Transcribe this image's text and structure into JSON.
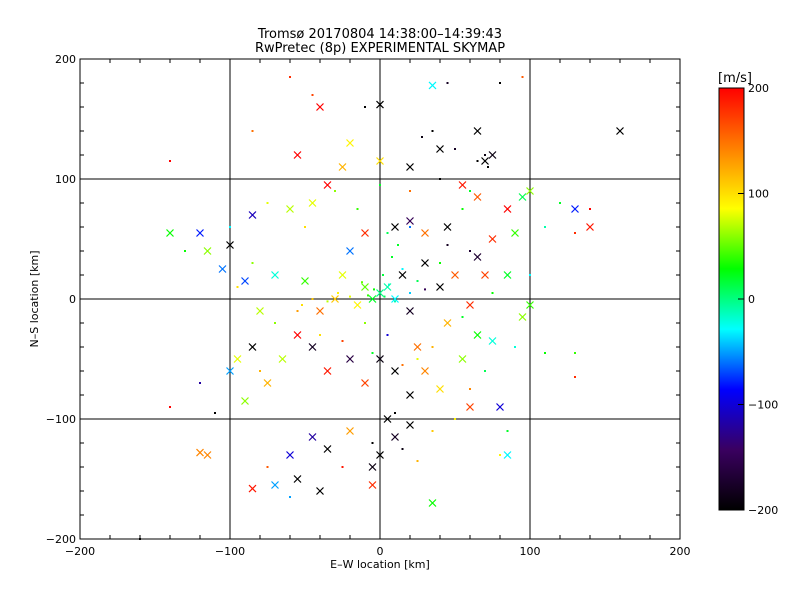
{
  "chart_data": {
    "type": "scatter",
    "title": "Tromsø 20170804 14:38:00–14:39:43",
    "subtitle": "RwPretec (8p) EXPERIMENTAL SKYMAP",
    "xlabel": "E–W location [km]",
    "ylabel": "N–S location [km]",
    "xlim": [
      -200,
      200
    ],
    "ylim": [
      -200,
      200
    ],
    "xticks": [
      -200,
      -100,
      0,
      100,
      200
    ],
    "yticks": [
      -200,
      -100,
      0,
      100,
      200
    ],
    "grid": true,
    "grid_lines": [
      -100,
      0,
      100
    ],
    "colorbar": {
      "label": "[m/s]",
      "ticks": [
        200,
        100,
        0,
        -100,
        -200
      ],
      "range": [
        -200,
        200
      ],
      "colormap": [
        "#000000",
        "#3a0060",
        "#0000ff",
        "#00ffff",
        "#00ff00",
        "#ffff00",
        "#ff8000",
        "#ff0000"
      ]
    },
    "marker_types": [
      "x",
      "dot"
    ],
    "points": [
      {
        "x": 0,
        "y": 5,
        "v": 0,
        "m": "dot"
      },
      {
        "x": 3,
        "y": 2,
        "v": 10,
        "m": "dot"
      },
      {
        "x": -4,
        "y": 8,
        "v": 30,
        "m": "dot"
      },
      {
        "x": 6,
        "y": 12,
        "v": -20,
        "m": "dot"
      },
      {
        "x": -8,
        "y": 3,
        "v": 40,
        "m": "dot"
      },
      {
        "x": 10,
        "y": -2,
        "v": -10,
        "m": "dot"
      },
      {
        "x": 2,
        "y": 20,
        "v": 15,
        "m": "dot"
      },
      {
        "x": -12,
        "y": 14,
        "v": 50,
        "m": "dot"
      },
      {
        "x": 15,
        "y": 25,
        "v": -30,
        "m": "dot"
      },
      {
        "x": 8,
        "y": 35,
        "v": 20,
        "m": "dot"
      },
      {
        "x": -20,
        "y": 2,
        "v": 80,
        "m": "dot"
      },
      {
        "x": -28,
        "y": 5,
        "v": 90,
        "m": "dot"
      },
      {
        "x": -35,
        "y": -2,
        "v": 70,
        "m": "dot"
      },
      {
        "x": -45,
        "y": 0,
        "v": 110,
        "m": "dot"
      },
      {
        "x": -52,
        "y": -5,
        "v": 100,
        "m": "dot"
      },
      {
        "x": 20,
        "y": 5,
        "v": -40,
        "m": "dot"
      },
      {
        "x": 25,
        "y": 15,
        "v": 10,
        "m": "dot"
      },
      {
        "x": 30,
        "y": 8,
        "v": -150,
        "m": "dot"
      },
      {
        "x": 12,
        "y": 45,
        "v": 20,
        "m": "dot"
      },
      {
        "x": 5,
        "y": 55,
        "v": 10,
        "m": "dot"
      },
      {
        "x": 20,
        "y": 60,
        "v": -60,
        "m": "dot"
      },
      {
        "x": 40,
        "y": 30,
        "v": 30,
        "m": "dot"
      },
      {
        "x": 45,
        "y": 45,
        "v": -180,
        "m": "dot"
      },
      {
        "x": 55,
        "y": 75,
        "v": 30,
        "m": "dot"
      },
      {
        "x": 60,
        "y": 90,
        "v": 20,
        "m": "dot"
      },
      {
        "x": 65,
        "y": 115,
        "v": -200,
        "m": "dot"
      },
      {
        "x": 70,
        "y": 120,
        "v": -190,
        "m": "dot"
      },
      {
        "x": 72,
        "y": 110,
        "v": -200,
        "m": "dot"
      },
      {
        "x": 50,
        "y": 125,
        "v": -180,
        "m": "dot"
      },
      {
        "x": 35,
        "y": 140,
        "v": -200,
        "m": "dot"
      },
      {
        "x": 28,
        "y": 135,
        "v": -190,
        "m": "dot"
      },
      {
        "x": 80,
        "y": 180,
        "v": -200,
        "m": "dot"
      },
      {
        "x": 95,
        "y": 185,
        "v": 160,
        "m": "dot"
      },
      {
        "x": 45,
        "y": 180,
        "v": -180,
        "m": "dot"
      },
      {
        "x": -60,
        "y": 185,
        "v": 180,
        "m": "dot"
      },
      {
        "x": -45,
        "y": 170,
        "v": 170,
        "m": "dot"
      },
      {
        "x": -10,
        "y": 160,
        "v": -200,
        "m": "dot"
      },
      {
        "x": -140,
        "y": 115,
        "v": 200,
        "m": "dot"
      },
      {
        "x": -85,
        "y": 140,
        "v": 150,
        "m": "dot"
      },
      {
        "x": -10,
        "y": -20,
        "v": 60,
        "m": "dot"
      },
      {
        "x": 5,
        "y": -30,
        "v": -100,
        "m": "dot"
      },
      {
        "x": -5,
        "y": -45,
        "v": 20,
        "m": "dot"
      },
      {
        "x": 15,
        "y": -55,
        "v": 150,
        "m": "dot"
      },
      {
        "x": 25,
        "y": -50,
        "v": 80,
        "m": "dot"
      },
      {
        "x": 35,
        "y": -40,
        "v": 120,
        "m": "dot"
      },
      {
        "x": -25,
        "y": -35,
        "v": 170,
        "m": "dot"
      },
      {
        "x": -40,
        "y": -30,
        "v": 100,
        "m": "dot"
      },
      {
        "x": -55,
        "y": -10,
        "v": 130,
        "m": "dot"
      },
      {
        "x": -70,
        "y": -20,
        "v": 60,
        "m": "dot"
      },
      {
        "x": -80,
        "y": -60,
        "v": 120,
        "m": "dot"
      },
      {
        "x": -120,
        "y": -70,
        "v": -120,
        "m": "dot"
      },
      {
        "x": -110,
        "y": -95,
        "v": -200,
        "m": "dot"
      },
      {
        "x": -140,
        "y": -90,
        "v": 200,
        "m": "dot"
      },
      {
        "x": -75,
        "y": -140,
        "v": 160,
        "m": "dot"
      },
      {
        "x": -60,
        "y": -165,
        "v": -50,
        "m": "dot"
      },
      {
        "x": -25,
        "y": -140,
        "v": 190,
        "m": "dot"
      },
      {
        "x": -5,
        "y": -120,
        "v": -200,
        "m": "dot"
      },
      {
        "x": 15,
        "y": -125,
        "v": -190,
        "m": "dot"
      },
      {
        "x": 25,
        "y": -135,
        "v": 120,
        "m": "dot"
      },
      {
        "x": 10,
        "y": -95,
        "v": -200,
        "m": "dot"
      },
      {
        "x": 35,
        "y": -110,
        "v": 110,
        "m": "dot"
      },
      {
        "x": 50,
        "y": -100,
        "v": 90,
        "m": "dot"
      },
      {
        "x": 60,
        "y": -75,
        "v": 140,
        "m": "dot"
      },
      {
        "x": 80,
        "y": -130,
        "v": 90,
        "m": "dot"
      },
      {
        "x": 85,
        "y": -110,
        "v": 20,
        "m": "dot"
      },
      {
        "x": 70,
        "y": -60,
        "v": 10,
        "m": "dot"
      },
      {
        "x": 90,
        "y": -40,
        "v": -20,
        "m": "dot"
      },
      {
        "x": 110,
        "y": -45,
        "v": 30,
        "m": "dot"
      },
      {
        "x": 130,
        "y": -45,
        "v": 40,
        "m": "dot"
      },
      {
        "x": 100,
        "y": 20,
        "v": -30,
        "m": "dot"
      },
      {
        "x": 110,
        "y": 60,
        "v": -10,
        "m": "dot"
      },
      {
        "x": 120,
        "y": 80,
        "v": 20,
        "m": "dot"
      },
      {
        "x": 130,
        "y": 55,
        "v": 180,
        "m": "dot"
      },
      {
        "x": 140,
        "y": 75,
        "v": 200,
        "m": "dot"
      },
      {
        "x": 130,
        "y": -65,
        "v": 180,
        "m": "dot"
      },
      {
        "x": -160,
        "y": -200,
        "v": -200,
        "m": "dot"
      },
      {
        "x": -130,
        "y": 40,
        "v": 30,
        "m": "dot"
      },
      {
        "x": -100,
        "y": 60,
        "v": -30,
        "m": "dot"
      },
      {
        "x": -85,
        "y": 30,
        "v": 60,
        "m": "dot"
      },
      {
        "x": -95,
        "y": 10,
        "v": 100,
        "m": "dot"
      },
      {
        "x": -75,
        "y": 80,
        "v": 80,
        "m": "dot"
      },
      {
        "x": -50,
        "y": 60,
        "v": 100,
        "m": "dot"
      },
      {
        "x": -30,
        "y": 90,
        "v": 60,
        "m": "dot"
      },
      {
        "x": -15,
        "y": 75,
        "v": 40,
        "m": "dot"
      },
      {
        "x": 0,
        "y": 95,
        "v": 20,
        "m": "dot"
      },
      {
        "x": 20,
        "y": 90,
        "v": 150,
        "m": "dot"
      },
      {
        "x": 40,
        "y": 100,
        "v": -200,
        "m": "dot"
      },
      {
        "x": 60,
        "y": 40,
        "v": -170,
        "m": "dot"
      },
      {
        "x": 75,
        "y": 5,
        "v": 30,
        "m": "dot"
      },
      {
        "x": 55,
        "y": -15,
        "v": 20,
        "m": "dot"
      },
      {
        "x": 0,
        "y": 5,
        "v": 0,
        "m": "x"
      },
      {
        "x": 5,
        "y": 10,
        "v": -10,
        "m": "x"
      },
      {
        "x": -5,
        "y": 0,
        "v": 20,
        "m": "x"
      },
      {
        "x": 10,
        "y": 0,
        "v": -30,
        "m": "x"
      },
      {
        "x": -10,
        "y": 10,
        "v": 50,
        "m": "x"
      },
      {
        "x": 15,
        "y": 20,
        "v": -200,
        "m": "x"
      },
      {
        "x": -15,
        "y": -5,
        "v": 90,
        "m": "x"
      },
      {
        "x": 20,
        "y": -10,
        "v": -180,
        "m": "x"
      },
      {
        "x": -25,
        "y": 20,
        "v": 80,
        "m": "x"
      },
      {
        "x": 30,
        "y": 30,
        "v": -200,
        "m": "x"
      },
      {
        "x": -30,
        "y": 0,
        "v": 110,
        "m": "x"
      },
      {
        "x": -40,
        "y": -10,
        "v": 150,
        "m": "x"
      },
      {
        "x": -50,
        "y": 15,
        "v": 40,
        "m": "x"
      },
      {
        "x": 40,
        "y": 10,
        "v": -200,
        "m": "x"
      },
      {
        "x": 50,
        "y": 20,
        "v": 160,
        "m": "x"
      },
      {
        "x": 60,
        "y": -5,
        "v": 180,
        "m": "x"
      },
      {
        "x": 45,
        "y": -20,
        "v": 120,
        "m": "x"
      },
      {
        "x": 25,
        "y": -40,
        "v": 150,
        "m": "x"
      },
      {
        "x": 10,
        "y": -60,
        "v": -200,
        "m": "x"
      },
      {
        "x": 0,
        "y": -50,
        "v": -190,
        "m": "x"
      },
      {
        "x": -10,
        "y": -70,
        "v": 170,
        "m": "x"
      },
      {
        "x": -20,
        "y": -50,
        "v": -160,
        "m": "x"
      },
      {
        "x": -35,
        "y": -60,
        "v": 190,
        "m": "x"
      },
      {
        "x": -45,
        "y": -40,
        "v": -180,
        "m": "x"
      },
      {
        "x": -55,
        "y": -30,
        "v": 200,
        "m": "x"
      },
      {
        "x": -65,
        "y": -50,
        "v": 70,
        "m": "x"
      },
      {
        "x": -75,
        "y": -70,
        "v": 120,
        "m": "x"
      },
      {
        "x": -85,
        "y": -40,
        "v": -200,
        "m": "x"
      },
      {
        "x": 20,
        "y": -80,
        "v": -200,
        "m": "x"
      },
      {
        "x": 30,
        "y": -60,
        "v": 140,
        "m": "x"
      },
      {
        "x": 40,
        "y": -75,
        "v": 100,
        "m": "x"
      },
      {
        "x": 55,
        "y": -50,
        "v": 60,
        "m": "x"
      },
      {
        "x": 65,
        "y": -30,
        "v": 30,
        "m": "x"
      },
      {
        "x": 75,
        "y": -35,
        "v": -20,
        "m": "x"
      },
      {
        "x": 80,
        "y": -90,
        "v": -100,
        "m": "x"
      },
      {
        "x": 60,
        "y": -90,
        "v": 170,
        "m": "x"
      },
      {
        "x": 5,
        "y": -100,
        "v": -200,
        "m": "x"
      },
      {
        "x": 0,
        "y": -130,
        "v": -200,
        "m": "x"
      },
      {
        "x": -5,
        "y": -140,
        "v": -190,
        "m": "x"
      },
      {
        "x": 10,
        "y": -115,
        "v": -180,
        "m": "x"
      },
      {
        "x": 20,
        "y": -105,
        "v": -200,
        "m": "x"
      },
      {
        "x": -20,
        "y": -110,
        "v": 130,
        "m": "x"
      },
      {
        "x": -35,
        "y": -125,
        "v": -200,
        "m": "x"
      },
      {
        "x": -45,
        "y": -115,
        "v": -120,
        "m": "x"
      },
      {
        "x": -60,
        "y": -130,
        "v": -100,
        "m": "x"
      },
      {
        "x": -55,
        "y": -150,
        "v": -200,
        "m": "x"
      },
      {
        "x": -40,
        "y": -160,
        "v": -200,
        "m": "x"
      },
      {
        "x": -70,
        "y": -155,
        "v": -50,
        "m": "x"
      },
      {
        "x": -85,
        "y": -158,
        "v": 190,
        "m": "x"
      },
      {
        "x": -5,
        "y": -155,
        "v": 180,
        "m": "x"
      },
      {
        "x": 35,
        "y": -170,
        "v": 30,
        "m": "x"
      },
      {
        "x": -115,
        "y": -130,
        "v": 140,
        "m": "x"
      },
      {
        "x": -90,
        "y": -85,
        "v": 60,
        "m": "x"
      },
      {
        "x": -100,
        "y": -60,
        "v": -50,
        "m": "x"
      },
      {
        "x": -95,
        "y": -50,
        "v": 80,
        "m": "x"
      },
      {
        "x": -80,
        "y": -10,
        "v": 70,
        "m": "x"
      },
      {
        "x": -90,
        "y": 15,
        "v": -70,
        "m": "x"
      },
      {
        "x": -105,
        "y": 25,
        "v": -60,
        "m": "x"
      },
      {
        "x": -115,
        "y": 40,
        "v": 60,
        "m": "x"
      },
      {
        "x": -120,
        "y": 55,
        "v": -80,
        "m": "x"
      },
      {
        "x": -100,
        "y": 45,
        "v": -200,
        "m": "x"
      },
      {
        "x": -85,
        "y": 70,
        "v": -110,
        "m": "x"
      },
      {
        "x": -70,
        "y": 20,
        "v": -20,
        "m": "x"
      },
      {
        "x": -60,
        "y": 75,
        "v": 70,
        "m": "x"
      },
      {
        "x": -45,
        "y": 80,
        "v": 80,
        "m": "x"
      },
      {
        "x": -35,
        "y": 95,
        "v": 200,
        "m": "x"
      },
      {
        "x": -25,
        "y": 110,
        "v": 120,
        "m": "x"
      },
      {
        "x": -20,
        "y": 130,
        "v": 90,
        "m": "x"
      },
      {
        "x": 0,
        "y": 115,
        "v": 100,
        "m": "x"
      },
      {
        "x": -55,
        "y": 120,
        "v": 200,
        "m": "x"
      },
      {
        "x": -40,
        "y": 160,
        "v": 200,
        "m": "x"
      },
      {
        "x": 0,
        "y": 162,
        "v": -200,
        "m": "x"
      },
      {
        "x": 35,
        "y": 178,
        "v": -30,
        "m": "x"
      },
      {
        "x": 20,
        "y": 110,
        "v": -200,
        "m": "x"
      },
      {
        "x": 40,
        "y": 125,
        "v": -200,
        "m": "x"
      },
      {
        "x": 65,
        "y": 140,
        "v": -200,
        "m": "x"
      },
      {
        "x": 70,
        "y": 115,
        "v": -200,
        "m": "x"
      },
      {
        "x": 75,
        "y": 120,
        "v": -190,
        "m": "x"
      },
      {
        "x": 55,
        "y": 95,
        "v": 190,
        "m": "x"
      },
      {
        "x": 65,
        "y": 85,
        "v": 160,
        "m": "x"
      },
      {
        "x": 85,
        "y": 75,
        "v": 200,
        "m": "x"
      },
      {
        "x": 75,
        "y": 50,
        "v": 180,
        "m": "x"
      },
      {
        "x": 90,
        "y": 55,
        "v": 40,
        "m": "x"
      },
      {
        "x": 95,
        "y": 85,
        "v": 10,
        "m": "x"
      },
      {
        "x": 100,
        "y": 90,
        "v": 60,
        "m": "x"
      },
      {
        "x": 130,
        "y": 75,
        "v": -80,
        "m": "x"
      },
      {
        "x": 140,
        "y": 60,
        "v": 190,
        "m": "x"
      },
      {
        "x": 160,
        "y": 140,
        "v": -200,
        "m": "x"
      },
      {
        "x": -140,
        "y": 55,
        "v": 30,
        "m": "x"
      },
      {
        "x": 45,
        "y": 60,
        "v": -200,
        "m": "x"
      },
      {
        "x": 30,
        "y": 55,
        "v": 150,
        "m": "x"
      },
      {
        "x": 20,
        "y": 65,
        "v": -150,
        "m": "x"
      },
      {
        "x": 10,
        "y": 60,
        "v": -200,
        "m": "x"
      },
      {
        "x": -10,
        "y": 55,
        "v": 180,
        "m": "x"
      },
      {
        "x": -20,
        "y": 40,
        "v": -60,
        "m": "x"
      },
      {
        "x": 65,
        "y": 35,
        "v": -170,
        "m": "x"
      },
      {
        "x": 70,
        "y": 20,
        "v": 170,
        "m": "x"
      },
      {
        "x": 85,
        "y": 20,
        "v": 20,
        "m": "x"
      },
      {
        "x": 95,
        "y": -15,
        "v": 60,
        "m": "x"
      },
      {
        "x": 100,
        "y": -5,
        "v": 40,
        "m": "x"
      },
      {
        "x": -120,
        "y": -128,
        "v": 140,
        "m": "x"
      },
      {
        "x": 85,
        "y": -130,
        "v": -30,
        "m": "x"
      }
    ]
  }
}
